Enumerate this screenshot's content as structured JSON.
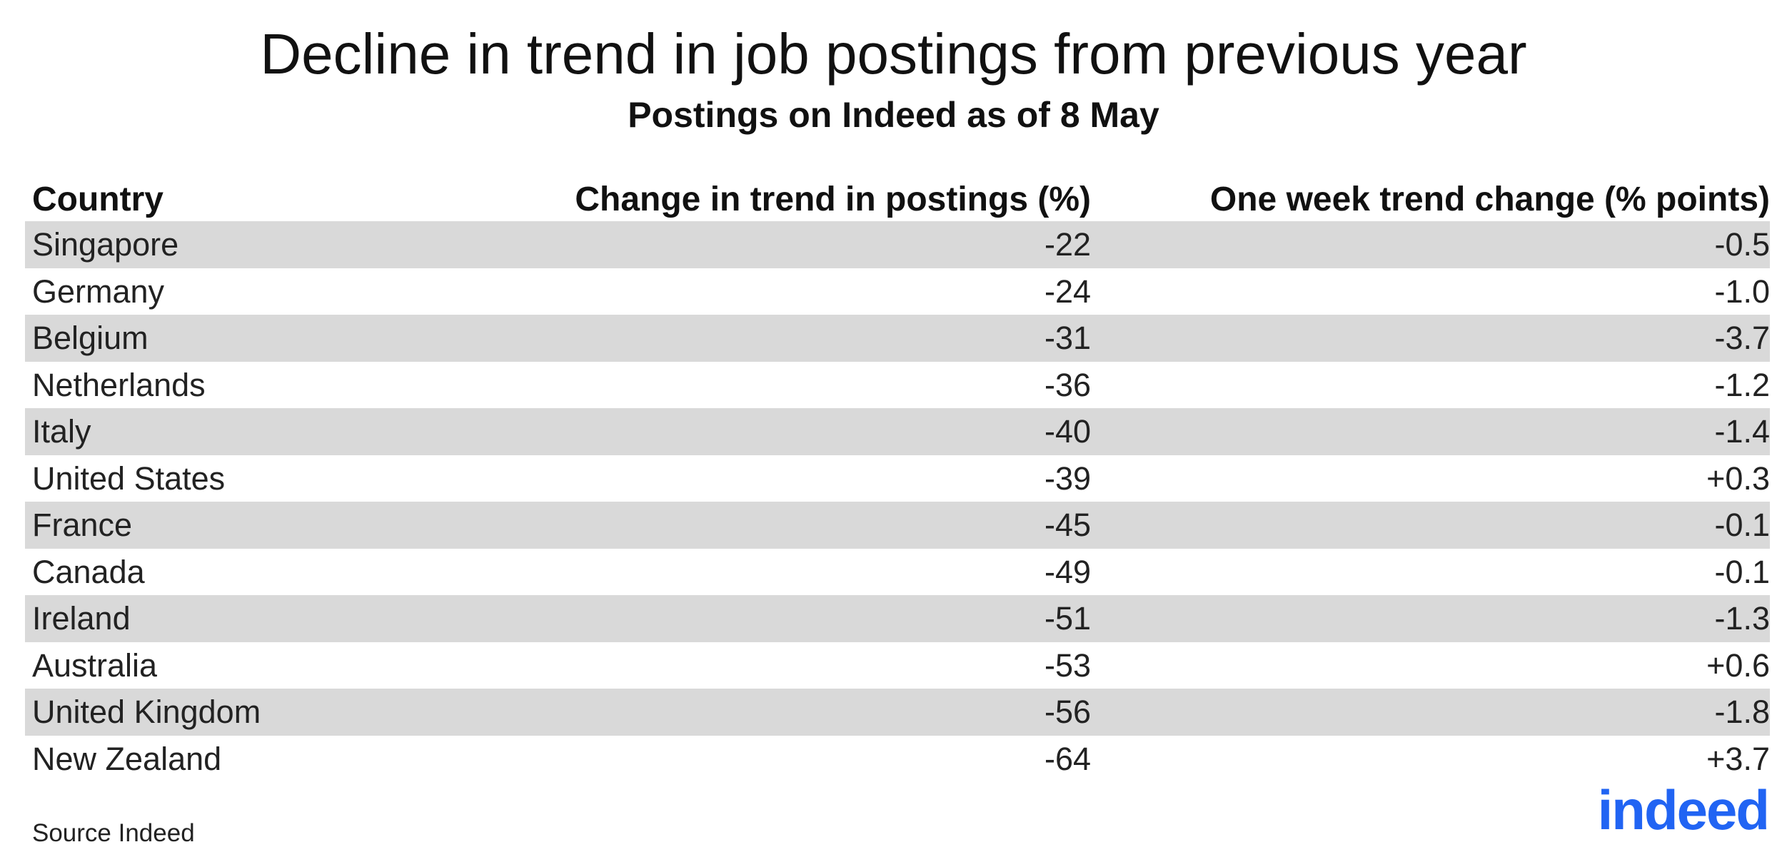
{
  "header": {
    "title": "Decline in trend in job postings from previous year",
    "subtitle": "Postings on Indeed as of 8 May"
  },
  "table": {
    "columns": [
      "Country",
      "Change in trend in postings (%)",
      "One week trend change (% points)"
    ],
    "rows": [
      [
        "Singapore",
        "-22",
        "-0.5"
      ],
      [
        "Germany",
        "-24",
        "-1.0"
      ],
      [
        "Belgium",
        "-31",
        "-3.7"
      ],
      [
        "Netherlands",
        "-36",
        "-1.2"
      ],
      [
        "Italy",
        "-40",
        "-1.4"
      ],
      [
        "United States",
        "-39",
        "+0.3"
      ],
      [
        "France",
        "-45",
        "-0.1"
      ],
      [
        "Canada",
        "-49",
        "-0.1"
      ],
      [
        "Ireland",
        "-51",
        "-1.3"
      ],
      [
        "Australia",
        "-53",
        "+0.6"
      ],
      [
        "United Kingdom",
        "-56",
        "-1.8"
      ],
      [
        "New Zealand",
        "-64",
        "+3.7"
      ]
    ]
  },
  "footer": {
    "source": "Source Indeed",
    "logo": "indeed"
  }
}
